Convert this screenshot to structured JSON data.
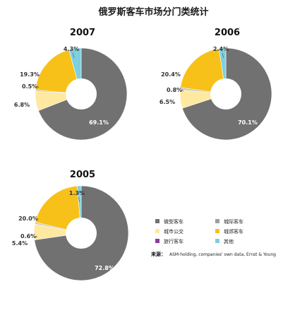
{
  "title": "俄罗斯客车市场分门类统计",
  "chart_data": [
    {
      "type": "pie",
      "title": "2007",
      "categories": [
        "微型客车",
        "城际客车",
        "城市公交",
        "城郊客车",
        "旅行客车",
        "其他"
      ],
      "values": [
        69.1,
        6.8,
        0.5,
        19.3,
        0.0,
        4.3
      ],
      "labels": [
        "69.1%",
        "6.8%",
        "0.5%",
        "19.3%",
        "",
        "4.3%"
      ]
    },
    {
      "type": "pie",
      "title": "2006",
      "categories": [
        "微型客车",
        "城际客车",
        "城市公交",
        "城郊客车",
        "旅行客车",
        "其他"
      ],
      "values": [
        70.1,
        6.5,
        0.8,
        20.4,
        0.0,
        2.4
      ],
      "labels": [
        "70.1%",
        "6.5%",
        "0.8%",
        "20.4%",
        "",
        "2.4%"
      ]
    },
    {
      "type": "pie",
      "title": "2005",
      "categories": [
        "微型客车",
        "城际客车",
        "城市公交",
        "城郊客车",
        "旅行客车",
        "其他"
      ],
      "values": [
        72.8,
        5.4,
        0.6,
        20.0,
        0.0,
        1.3
      ],
      "labels": [
        "72.8%",
        "5.4%",
        "0.6%",
        "20.0%",
        "",
        "1.3%"
      ]
    }
  ],
  "colors": [
    "#717171",
    "#ffe9a0",
    "#c4c4c4",
    "#f7c11a",
    "#7a2f8e",
    "#7ecfe0"
  ],
  "legend": {
    "items": [
      {
        "label": "微型客车",
        "color": "#717171"
      },
      {
        "label": "城际客车",
        "color": "#9e9e9e"
      },
      {
        "label": "城市公交",
        "color": "#ffe9a0"
      },
      {
        "label": "城郊客车",
        "color": "#f7c11a"
      },
      {
        "label": "旅行客车",
        "color": "#8e3a9e"
      },
      {
        "label": "其他",
        "color": "#7ecfe0"
      }
    ]
  },
  "source": {
    "lead": "来源：",
    "text": "ASM-holding, companies' own data, Ernst & Young"
  }
}
